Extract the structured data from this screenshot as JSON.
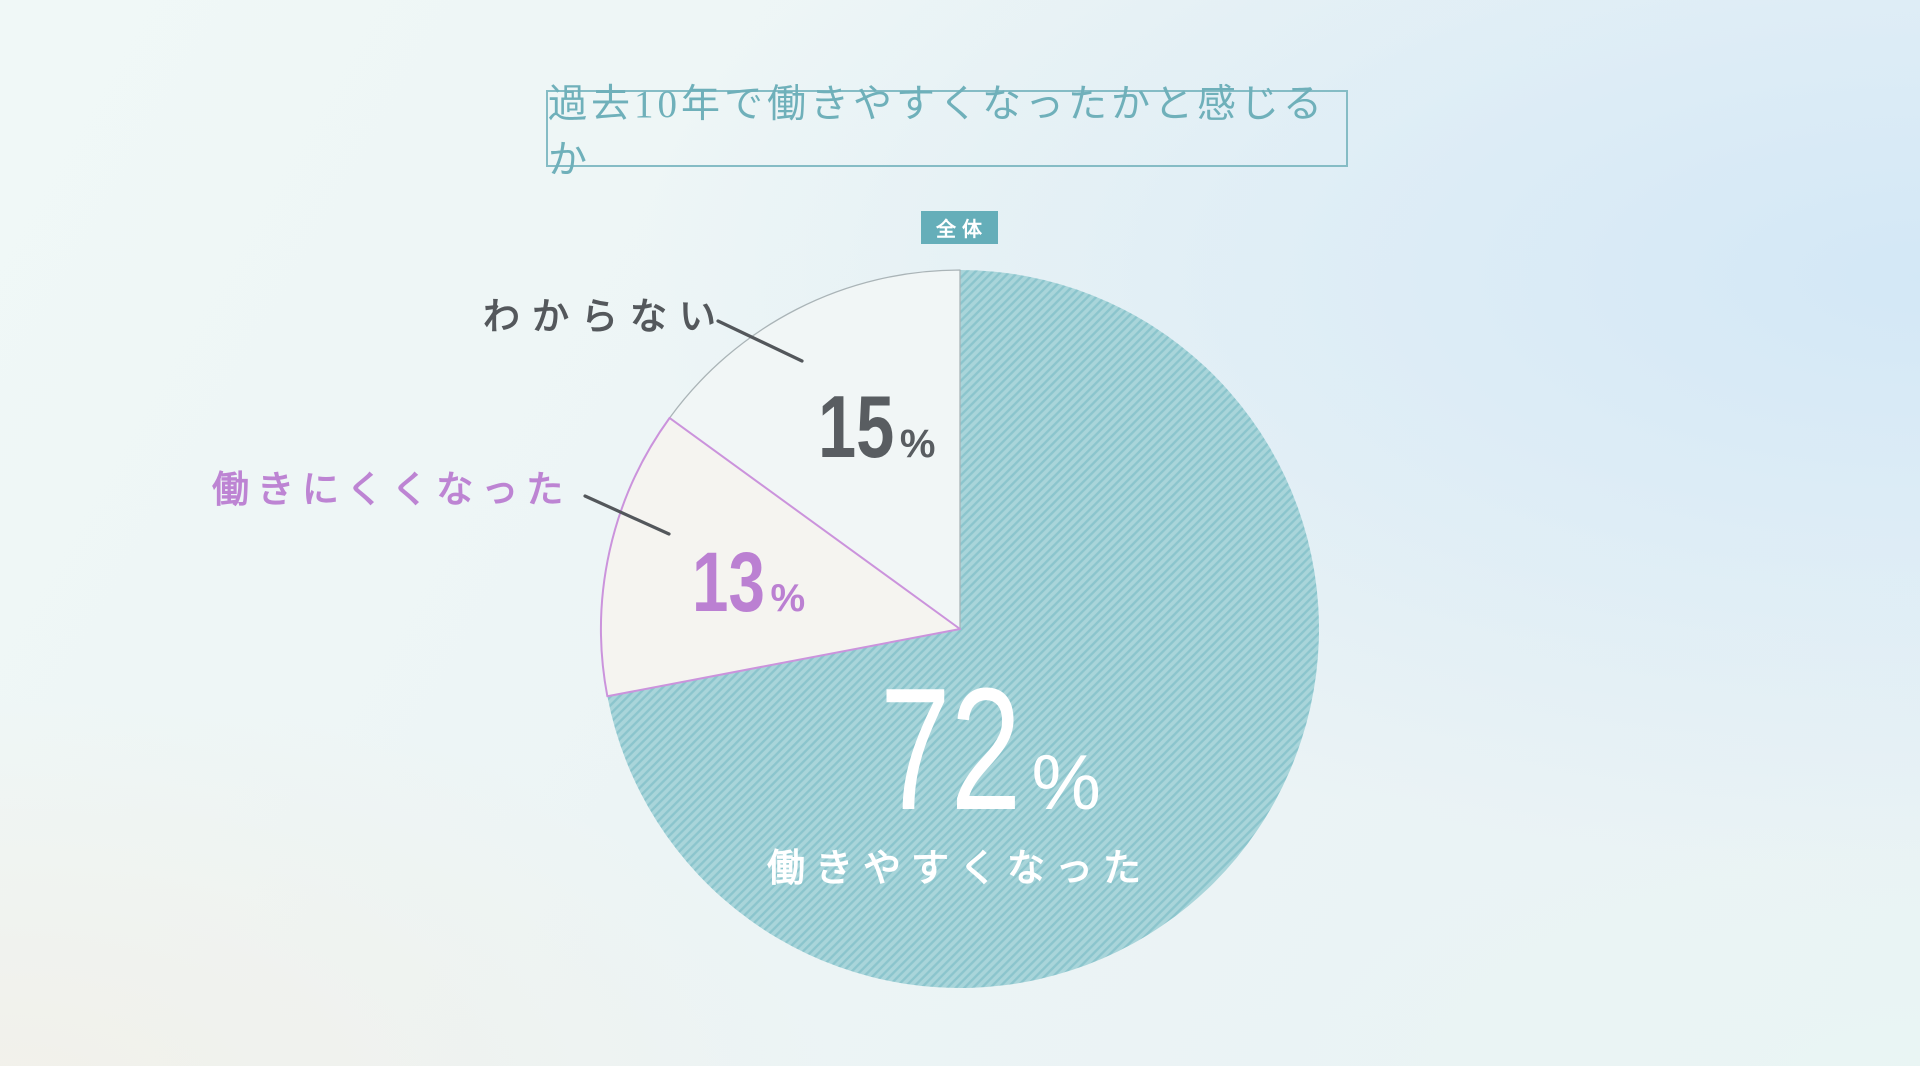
{
  "title": {
    "text": "過去10年で働きやすくなったかと感じるか"
  },
  "badge": {
    "text": "全体"
  },
  "chart_data": {
    "type": "pie",
    "title": "過去10年で働きやすくなったかと感じるか",
    "group_label": "全体",
    "direction": "clockwise",
    "start_angle_deg": 0,
    "slices": [
      {
        "label": "働きやすくなった",
        "value": 72,
        "unit": "%",
        "label_placement": "inside",
        "fill_style": "teal-diagonal-hatch"
      },
      {
        "label": "働きにくくなった",
        "value": 13,
        "unit": "%",
        "label_placement": "outside-left",
        "fill_style": "white-purple-outline"
      },
      {
        "label": "わからない",
        "value": 15,
        "unit": "%",
        "label_placement": "outside-top-left",
        "fill_style": "white-gray-outline"
      }
    ]
  },
  "colors": {
    "title_text": "#6fb0ba",
    "title_border": "#85bcc5",
    "badge_bg": "#65aeb9",
    "badge_text": "#ffffff",
    "slice_teal_base": "#a9d5da",
    "slice_teal_hatch": "#8bc5cd",
    "slice_13_fill": "#f5f4f0",
    "slice_13_outline": "#cb93dc",
    "slice_15_fill": "#f1f6f6",
    "slice_15_outline": "#aab4b7",
    "value_72_text": "#ffffff",
    "value_15_text": "#595d61",
    "value_13_text": "#bb80d2",
    "label_dark": "#54585c",
    "label_purple": "#bd84d3",
    "leader_line": "#53575b"
  }
}
